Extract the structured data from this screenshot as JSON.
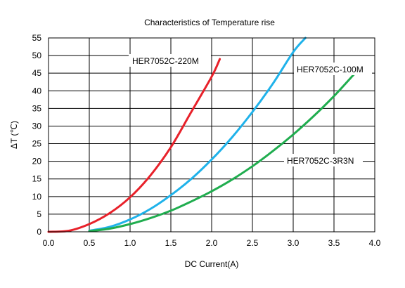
{
  "chart_data": {
    "type": "line",
    "title": "Characteristics of Temperature  rise",
    "xlabel": "DC Current(A)",
    "ylabel": "ΔT (℃)",
    "xlim": [
      0,
      4
    ],
    "ylim": [
      0,
      55
    ],
    "x_ticks": [
      "0.0",
      "0.5",
      "1.0",
      "1.5",
      "2.0",
      "2.5",
      "3.0",
      "3.5",
      "4.0"
    ],
    "y_ticks": [
      "0",
      "5",
      "10",
      "15",
      "20",
      "25",
      "30",
      "35",
      "40",
      "45",
      "50",
      "55"
    ],
    "grid": true,
    "series": [
      {
        "name": "HER7052C-220M",
        "color": "#e8212a",
        "x": [
          0,
          0.25,
          0.5,
          0.75,
          1.0,
          1.25,
          1.5,
          1.75,
          2.0,
          2.1
        ],
        "y": [
          0,
          0.3,
          2.2,
          5.3,
          9.8,
          16.0,
          24.0,
          34.0,
          44.0,
          49.0
        ]
      },
      {
        "name": "HER7052C-100M",
        "color": "#1fb2ea",
        "x": [
          0.5,
          0.75,
          1.0,
          1.25,
          1.5,
          1.75,
          2.0,
          2.25,
          2.5,
          2.75,
          3.0,
          3.15
        ],
        "y": [
          0.3,
          1.4,
          3.5,
          6.5,
          10.4,
          15.0,
          20.5,
          26.8,
          34.0,
          42.0,
          51.0,
          55.0
        ]
      },
      {
        "name": "HER7052C-3R3N",
        "color": "#20ad4f",
        "x": [
          0.5,
          0.75,
          1.0,
          1.25,
          1.5,
          1.75,
          2.0,
          2.25,
          2.5,
          2.75,
          3.0,
          3.25,
          3.5,
          3.75
        ],
        "y": [
          0.2,
          0.9,
          2.2,
          3.9,
          6.0,
          8.6,
          11.5,
          14.8,
          18.6,
          22.9,
          27.6,
          32.8,
          38.5,
          44.8
        ]
      }
    ],
    "annotations": [
      "HER7052C-220M",
      "HER7052C-100M",
      "HER7052C-3R3N"
    ]
  }
}
